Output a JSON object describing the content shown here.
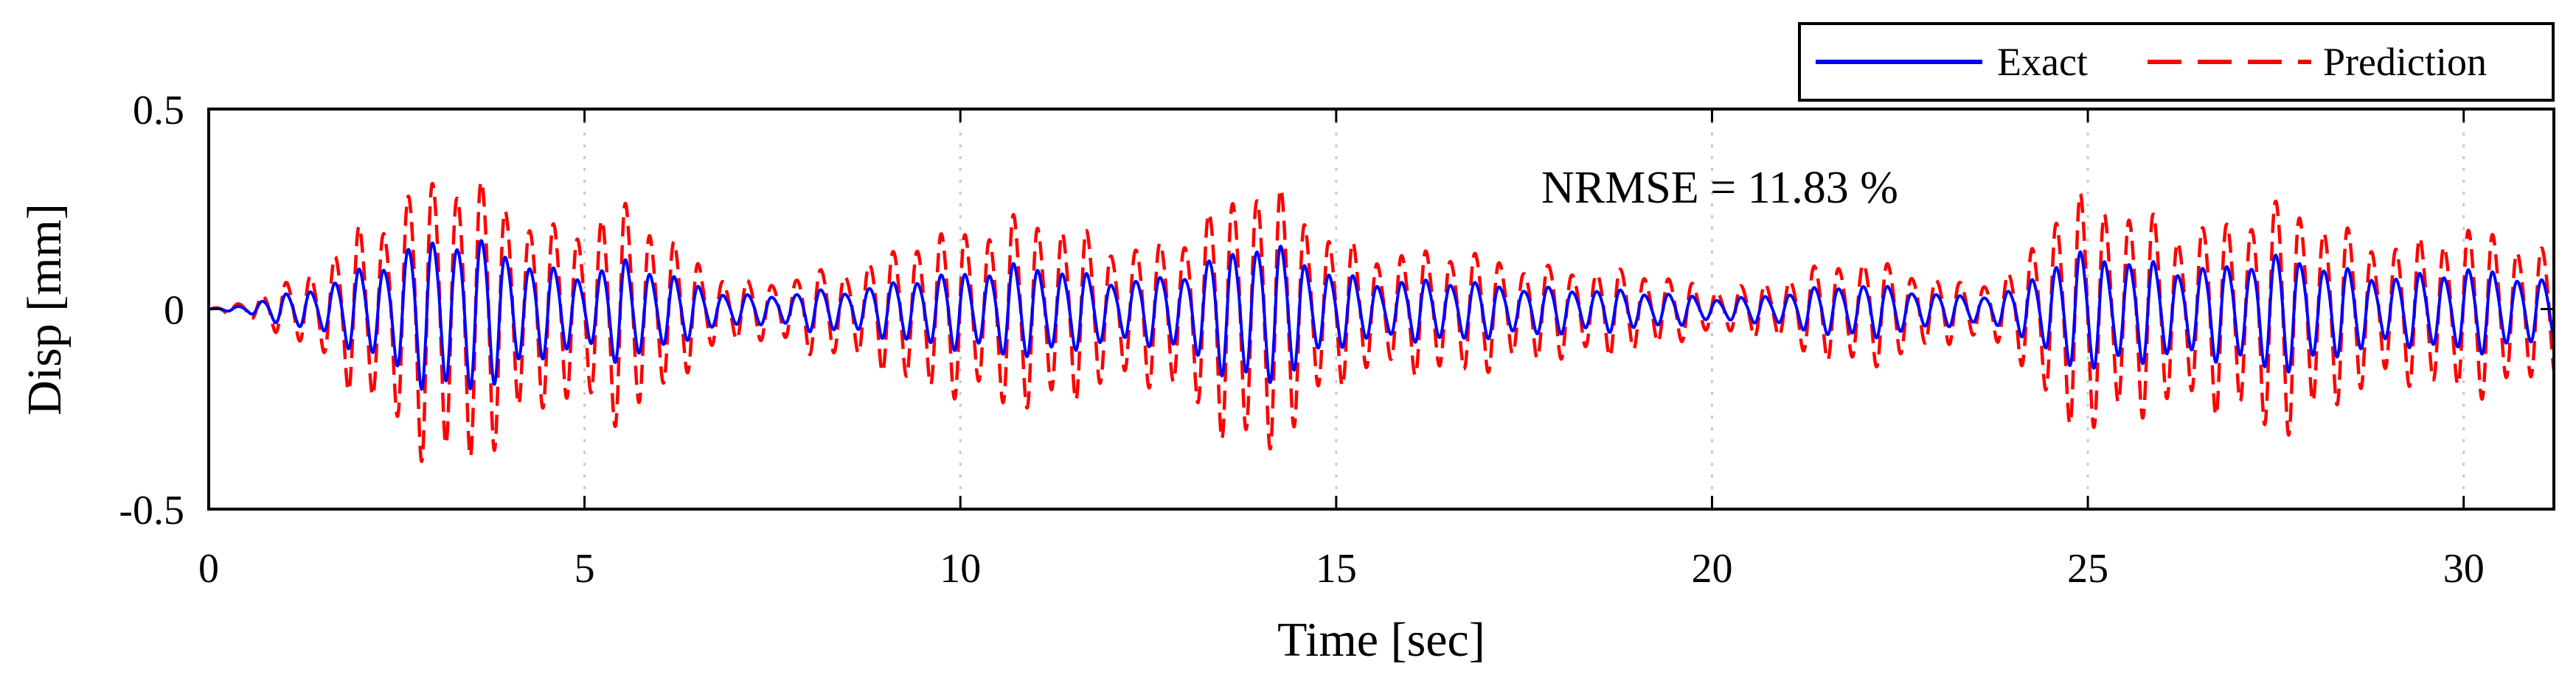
{
  "chart_data": {
    "type": "line",
    "title": "",
    "xlabel": "Time [sec]",
    "ylabel": "Disp [mm]",
    "xlim": [
      0,
      31.2
    ],
    "ylim": [
      -0.5,
      0.5
    ],
    "x_ticks": [
      "0",
      "5",
      "10",
      "15",
      "20",
      "25",
      "30"
    ],
    "y_ticks": [
      "0.5",
      "0",
      "-0.5"
    ],
    "vertical_grid": true,
    "legend_position": "top-right",
    "annotation": "NRMSE = 11.83 %",
    "series": [
      {
        "name": "Exact",
        "color": "#0000ff",
        "style": "solid",
        "dominant_frequency_hz": 3.1,
        "envelope": {
          "t": [
            0,
            0.5,
            0.8,
            1.2,
            1.6,
            2.0,
            2.5,
            3.0,
            3.5,
            4.0,
            4.5,
            5.0,
            5.5,
            6.0,
            6.5,
            7.0,
            7.5,
            8.0,
            8.5,
            9.0,
            9.5,
            10.0,
            10.5,
            11.0,
            11.5,
            12.0,
            12.5,
            13.0,
            13.5,
            14.0,
            14.5,
            15.0,
            15.5,
            16.0,
            16.5,
            17.0,
            17.5,
            18.0,
            18.5,
            19.0,
            19.5,
            20.0,
            20.5,
            21.0,
            21.5,
            22.0,
            22.5,
            23.0,
            23.5,
            24.0,
            24.5,
            25.0,
            25.5,
            26.0,
            26.5,
            27.0,
            27.5,
            28.0,
            28.5,
            29.0,
            29.5,
            30.0,
            30.5,
            31.2
          ],
          "amplitude_mm": [
            0,
            0.01,
            0.03,
            0.05,
            0.09,
            0.14,
            0.18,
            0.2,
            0.2,
            0.19,
            0.15,
            0.12,
            0.14,
            0.1,
            0.07,
            0.05,
            0.05,
            0.06,
            0.05,
            0.07,
            0.11,
            0.13,
            0.14,
            0.12,
            0.1,
            0.09,
            0.11,
            0.14,
            0.17,
            0.19,
            0.15,
            0.12,
            0.1,
            0.09,
            0.08,
            0.07,
            0.07,
            0.08,
            0.07,
            0.05,
            0.04,
            0.03,
            0.04,
            0.06,
            0.07,
            0.07,
            0.06,
            0.05,
            0.05,
            0.06,
            0.13,
            0.15,
            0.15,
            0.16,
            0.15,
            0.14,
            0.15,
            0.14,
            0.13,
            0.12,
            0.11,
            0.11,
            0.1,
            0.09
          ]
        }
      },
      {
        "name": "Prediction",
        "color": "#ff0000",
        "style": "dashed",
        "dominant_frequency_hz": 3.1,
        "envelope": {
          "t": [
            0,
            0.5,
            0.8,
            1.2,
            1.6,
            2.0,
            2.5,
            3.0,
            3.5,
            4.0,
            4.5,
            5.0,
            5.5,
            6.0,
            6.5,
            7.0,
            7.5,
            8.0,
            8.5,
            9.0,
            9.5,
            10.0,
            10.5,
            11.0,
            11.5,
            12.0,
            12.5,
            13.0,
            13.5,
            14.0,
            14.5,
            15.0,
            15.5,
            16.0,
            16.5,
            17.0,
            17.5,
            18.0,
            18.5,
            19.0,
            19.5,
            20.0,
            20.5,
            21.0,
            21.5,
            22.0,
            22.5,
            23.0,
            23.5,
            24.0,
            24.5,
            25.0,
            25.5,
            26.0,
            26.5,
            27.0,
            27.5,
            28.0,
            28.5,
            29.0,
            29.5,
            30.0,
            30.5,
            31.2
          ],
          "amplitude_mm": [
            0,
            0.02,
            0.05,
            0.09,
            0.18,
            0.29,
            0.34,
            0.38,
            0.37,
            0.36,
            0.3,
            0.3,
            0.3,
            0.21,
            0.14,
            0.1,
            0.1,
            0.12,
            0.11,
            0.15,
            0.25,
            0.28,
            0.29,
            0.25,
            0.22,
            0.2,
            0.23,
            0.29,
            0.33,
            0.36,
            0.29,
            0.24,
            0.2,
            0.18,
            0.16,
            0.15,
            0.14,
            0.16,
            0.14,
            0.11,
            0.08,
            0.06,
            0.08,
            0.12,
            0.14,
            0.14,
            0.12,
            0.1,
            0.1,
            0.12,
            0.27,
            0.3,
            0.3,
            0.32,
            0.3,
            0.28,
            0.3,
            0.28,
            0.26,
            0.24,
            0.22,
            0.22,
            0.2,
            0.19
          ]
        }
      }
    ]
  }
}
